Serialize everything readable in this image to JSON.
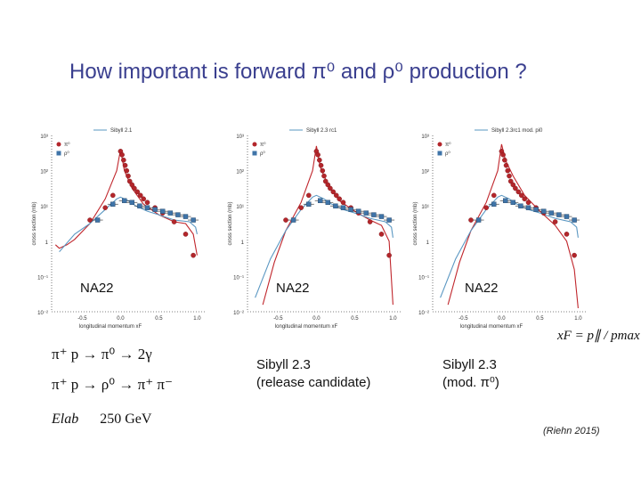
{
  "slide": {
    "title": "How important is forward π⁰ and ρ⁰ production ?",
    "reactions": [
      "π⁺ p → π⁰ → 2γ",
      "π⁺ p → ρ⁰ → π⁺ π⁻"
    ],
    "energy_label": "Elab",
    "energy_value": "250 GeV",
    "xf_definition": "xF = p∥ / pmax",
    "citation": "(Riehn 2015)"
  },
  "chart_data": [
    {
      "type": "line",
      "legend_model": "Sibyll 2.1",
      "experiment_label": "NA22",
      "caption": [],
      "xlabel": "longitudinal momentum xF",
      "ylabel": "cross section (mb)",
      "xticks": [
        "-0.5",
        "0.0",
        "0.5",
        "1.0"
      ],
      "yticks": [
        "10⁻²",
        "10⁻¹",
        "1",
        "10¹",
        "10²",
        "10³"
      ],
      "xlim": [
        -0.9,
        1.1
      ],
      "ylog_range": [
        -2,
        3
      ],
      "legend_entries": [
        "π⁰",
        "ρ⁰"
      ],
      "series": [
        {
          "name": "π⁰ model",
          "color": "#c0262c",
          "x": [
            -0.85,
            -0.8,
            -0.7,
            -0.6,
            -0.4,
            -0.2,
            -0.05,
            0.0,
            0.05,
            0.15,
            0.3,
            0.5,
            0.7,
            0.85,
            0.95,
            1.0
          ],
          "logy": [
            -0.1,
            -0.2,
            -0.1,
            0.05,
            0.5,
            1.2,
            2.0,
            2.6,
            2.0,
            1.5,
            1.05,
            0.75,
            0.55,
            0.5,
            0.2,
            -0.4
          ]
        },
        {
          "name": "ρ⁰ model",
          "color": "#5a97c2",
          "x": [
            -0.8,
            -0.6,
            -0.4,
            -0.2,
            -0.05,
            0.0,
            0.1,
            0.2,
            0.35,
            0.5,
            0.7,
            0.9,
            0.98,
            1.0
          ],
          "logy": [
            -0.3,
            0.2,
            0.5,
            0.9,
            1.2,
            1.25,
            1.15,
            1.0,
            0.85,
            0.75,
            0.6,
            0.55,
            0.4,
            0.2
          ]
        },
        {
          "name": "π⁰ data",
          "color": "#c0262c",
          "x": [
            -0.4,
            -0.2,
            -0.1,
            0.0,
            0.02,
            0.04,
            0.06,
            0.08,
            0.1,
            0.12,
            0.15,
            0.18,
            0.22,
            0.26,
            0.3,
            0.35,
            0.45,
            0.55,
            0.7,
            0.85,
            0.95
          ],
          "logy": [
            0.6,
            0.95,
            1.3,
            2.55,
            2.45,
            2.3,
            2.15,
            2.0,
            1.85,
            1.7,
            1.6,
            1.5,
            1.4,
            1.3,
            1.2,
            1.1,
            0.95,
            0.8,
            0.55,
            0.2,
            -0.4
          ]
        },
        {
          "name": "ρ⁰ data",
          "color": "#3f74a8",
          "x": [
            -0.3,
            -0.1,
            0.05,
            0.15,
            0.25,
            0.35,
            0.45,
            0.55,
            0.65,
            0.75,
            0.85,
            0.95
          ],
          "logy": [
            0.6,
            1.05,
            1.15,
            1.1,
            1.0,
            0.95,
            0.9,
            0.85,
            0.8,
            0.75,
            0.7,
            0.6
          ]
        }
      ]
    },
    {
      "type": "line",
      "legend_model": "Sibyll 2.3 rc1",
      "experiment_label": "NA22",
      "caption": [
        "Sibyll 2.3",
        "(release candidate)"
      ],
      "xlabel": "longitudinal momentum xF",
      "ylabel": "cross section (mb)",
      "xticks": [
        "-0.5",
        "0.0",
        "0.5",
        "1.0"
      ],
      "yticks": [
        "10⁻²",
        "10⁻¹",
        "1",
        "10¹",
        "10²",
        "10³"
      ],
      "xlim": [
        -0.9,
        1.1
      ],
      "ylog_range": [
        -2,
        3
      ],
      "legend_entries": [
        "π⁰",
        "ρ⁰"
      ],
      "series": [
        {
          "name": "π⁰ model",
          "color": "#c0262c",
          "x": [
            -0.7,
            -0.55,
            -0.4,
            -0.2,
            -0.05,
            0.0,
            0.05,
            0.15,
            0.3,
            0.5,
            0.7,
            0.85,
            0.95,
            1.0
          ],
          "logy": [
            -1.8,
            -0.6,
            0.3,
            1.1,
            2.0,
            2.7,
            2.1,
            1.6,
            1.15,
            0.85,
            0.6,
            0.45,
            0.0,
            -1.8
          ]
        },
        {
          "name": "ρ⁰ model",
          "color": "#5a97c2",
          "x": [
            -0.8,
            -0.6,
            -0.4,
            -0.2,
            -0.05,
            0.0,
            0.1,
            0.2,
            0.35,
            0.5,
            0.7,
            0.9,
            0.98,
            1.0
          ],
          "logy": [
            -1.6,
            -0.5,
            0.3,
            0.9,
            1.25,
            1.3,
            1.2,
            1.05,
            0.9,
            0.8,
            0.65,
            0.55,
            0.4,
            0.1
          ]
        },
        {
          "name": "π⁰ data",
          "color": "#c0262c",
          "x": [
            -0.4,
            -0.2,
            -0.1,
            0.0,
            0.02,
            0.04,
            0.06,
            0.08,
            0.1,
            0.12,
            0.15,
            0.18,
            0.22,
            0.26,
            0.3,
            0.35,
            0.45,
            0.55,
            0.7,
            0.85,
            0.95
          ],
          "logy": [
            0.6,
            0.95,
            1.3,
            2.55,
            2.45,
            2.3,
            2.15,
            2.0,
            1.85,
            1.7,
            1.6,
            1.5,
            1.4,
            1.3,
            1.2,
            1.1,
            0.95,
            0.8,
            0.55,
            0.2,
            -0.4
          ]
        },
        {
          "name": "ρ⁰ data",
          "color": "#3f74a8",
          "x": [
            -0.3,
            -0.1,
            0.05,
            0.15,
            0.25,
            0.35,
            0.45,
            0.55,
            0.65,
            0.75,
            0.85,
            0.95
          ],
          "logy": [
            0.6,
            1.05,
            1.15,
            1.1,
            1.0,
            0.95,
            0.9,
            0.85,
            0.8,
            0.75,
            0.7,
            0.6
          ]
        }
      ]
    },
    {
      "type": "line",
      "legend_model": "Sibyll 2.3rc1 mod. pi0",
      "experiment_label": "NA22",
      "caption": [
        "Sibyll 2.3",
        "(mod. π⁰)"
      ],
      "xlabel": "longitudinal momentum xF",
      "ylabel": "cross section (mb)",
      "xticks": [
        "-0.5",
        "0.0",
        "0.5",
        "1.0"
      ],
      "yticks": [
        "10⁻²",
        "10⁻¹",
        "1",
        "10¹",
        "10²",
        "10³"
      ],
      "xlim": [
        -0.9,
        1.1
      ],
      "ylog_range": [
        -2,
        3
      ],
      "legend_entries": [
        "π⁰",
        "ρ⁰"
      ],
      "series": [
        {
          "name": "π⁰ model",
          "color": "#c0262c",
          "x": [
            -0.7,
            -0.55,
            -0.4,
            -0.2,
            -0.05,
            0.0,
            0.05,
            0.15,
            0.3,
            0.5,
            0.7,
            0.85,
            0.95,
            1.0
          ],
          "logy": [
            -1.8,
            -0.6,
            0.3,
            1.1,
            2.0,
            2.75,
            2.3,
            1.85,
            1.3,
            0.85,
            0.45,
            0.0,
            -0.8,
            -1.9
          ]
        },
        {
          "name": "ρ⁰ model",
          "color": "#5a97c2",
          "x": [
            -0.8,
            -0.6,
            -0.4,
            -0.2,
            -0.05,
            0.0,
            0.1,
            0.2,
            0.35,
            0.5,
            0.7,
            0.9,
            0.98,
            1.0
          ],
          "logy": [
            -1.6,
            -0.5,
            0.3,
            0.9,
            1.25,
            1.3,
            1.2,
            1.05,
            0.9,
            0.8,
            0.65,
            0.55,
            0.4,
            0.1
          ]
        },
        {
          "name": "π⁰ data",
          "color": "#c0262c",
          "x": [
            -0.4,
            -0.2,
            -0.1,
            0.0,
            0.02,
            0.04,
            0.06,
            0.08,
            0.1,
            0.12,
            0.15,
            0.18,
            0.22,
            0.26,
            0.3,
            0.35,
            0.45,
            0.55,
            0.7,
            0.85,
            0.95
          ],
          "logy": [
            0.6,
            0.95,
            1.3,
            2.55,
            2.45,
            2.3,
            2.15,
            2.0,
            1.85,
            1.7,
            1.6,
            1.5,
            1.4,
            1.3,
            1.2,
            1.1,
            0.95,
            0.8,
            0.55,
            0.2,
            -0.4
          ]
        },
        {
          "name": "ρ⁰ data",
          "color": "#3f74a8",
          "x": [
            -0.3,
            -0.1,
            0.05,
            0.15,
            0.25,
            0.35,
            0.45,
            0.55,
            0.65,
            0.75,
            0.85,
            0.95
          ],
          "logy": [
            0.6,
            1.05,
            1.15,
            1.1,
            1.0,
            0.95,
            0.9,
            0.85,
            0.8,
            0.75,
            0.7,
            0.6
          ]
        }
      ]
    }
  ]
}
